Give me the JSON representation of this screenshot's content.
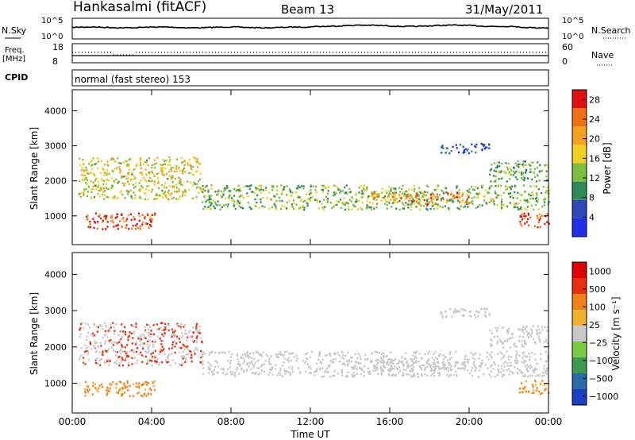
{
  "header": {
    "station": "Hankasalmi (fitACF)",
    "beam": "Beam 13",
    "date": "31/May/2011"
  },
  "top_panels": {
    "nsky_label": "N.Sky",
    "nsky_ticks": [
      "10^5",
      "10^0"
    ],
    "nsearch_label": "N.Search",
    "nsearch_ticks": [
      "10^5",
      "10^0"
    ],
    "freq_label": "Freq.",
    "freq_unit": "[MHz]",
    "freq_ticks": [
      18,
      8
    ],
    "nave_label": "Nave",
    "nave_ticks": [
      60,
      0
    ],
    "cpid_label": "CPID",
    "cpid_text": "normal (fast stereo) 153"
  },
  "chart_data": [
    {
      "type": "heatmap",
      "ylabel": "Slant Range [km]",
      "y_ticks": [
        1000,
        2000,
        3000,
        4000
      ],
      "ylim": [
        180,
        4600
      ],
      "x_ticks": [
        "00:00",
        "04:00",
        "08:00",
        "12:00",
        "16:00",
        "20:00",
        "00:00"
      ],
      "xlim_hours": [
        0,
        24
      ],
      "colorbar_label": "Power [dB]",
      "colorbar_ticks": [
        4,
        8,
        12,
        16,
        20,
        24,
        28
      ],
      "colorbar_range": [
        0,
        30
      ],
      "colorbar_colors": [
        "#1f30e8",
        "#2e48b8",
        "#2f8a5a",
        "#7bbf3e",
        "#f0d020",
        "#f5a020",
        "#f07010",
        "#e01010"
      ],
      "description_bands": [
        {
          "t0": 0.3,
          "t1": 6.5,
          "r0": 1500,
          "r1": 2700,
          "level": 16
        },
        {
          "t0": 0.6,
          "t1": 4.2,
          "r0": 650,
          "r1": 1100,
          "level": 26
        },
        {
          "t0": 6.5,
          "t1": 24,
          "r0": 1200,
          "r1": 1900,
          "level": 13
        },
        {
          "t0": 15,
          "t1": 20,
          "r0": 1350,
          "r1": 1700,
          "level": 22
        },
        {
          "t0": 22.5,
          "t1": 24,
          "r0": 700,
          "r1": 1100,
          "level": 27
        },
        {
          "t0": 21,
          "t1": 24,
          "r0": 2000,
          "r1": 2600,
          "level": 12
        },
        {
          "t0": 18.5,
          "t1": 21,
          "r0": 2800,
          "r1": 3100,
          "level": 6
        }
      ]
    },
    {
      "type": "heatmap",
      "ylabel": "Slant Range [km]",
      "y_ticks": [
        1000,
        2000,
        3000,
        4000
      ],
      "ylim": [
        180,
        4600
      ],
      "x_ticks": [
        "00:00",
        "04:00",
        "08:00",
        "12:00",
        "16:00",
        "20:00",
        "00:00"
      ],
      "xlabel": "Time UT",
      "colorbar_label": "Velocity [m s⁻¹]",
      "colorbar_ticks": [
        "1000",
        "500",
        "100",
        "25",
        "−25",
        "−100",
        "−500",
        "−1000"
      ],
      "colorbar_colors": [
        "#1840c0",
        "#2a6aa8",
        "#3c9a50",
        "#7acc44",
        "#c8c8c8",
        "#f0b030",
        "#f08018",
        "#e83010",
        "#e00000"
      ]
    }
  ]
}
